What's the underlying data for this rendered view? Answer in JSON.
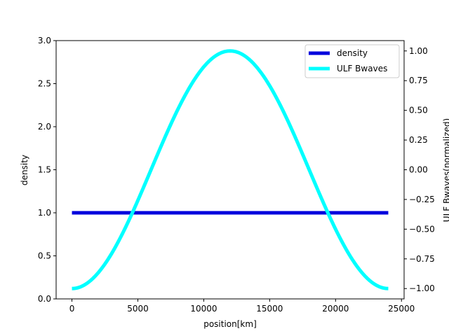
{
  "chart_data": {
    "type": "line",
    "xlabel": "position[km]",
    "ylabel_left": "density",
    "ylabel_right": "ULF Bwaves(normalized)",
    "xlim": [
      -1200,
      25200
    ],
    "ylim_left": [
      0.0,
      3.0
    ],
    "ylim_right": [
      -1.087,
      1.087
    ],
    "x_ticks": [
      0,
      5000,
      10000,
      15000,
      20000,
      25000
    ],
    "x_tick_labels": [
      "0",
      "5000",
      "10000",
      "15000",
      "20000",
      "25000"
    ],
    "y_left_ticks": [
      0.0,
      0.5,
      1.0,
      1.5,
      2.0,
      2.5,
      3.0
    ],
    "y_left_tick_labels": [
      "0.0",
      "0.5",
      "1.0",
      "1.5",
      "2.0",
      "2.5",
      "3.0"
    ],
    "y_right_ticks": [
      -1.0,
      -0.75,
      -0.5,
      -0.25,
      0.0,
      0.25,
      0.5,
      0.75,
      1.0
    ],
    "y_right_tick_labels": [
      "−1.00",
      "−0.75",
      "−0.50",
      "−0.25",
      "0.00",
      "0.25",
      "0.50",
      "0.75",
      "1.00"
    ],
    "grid": false,
    "legend_position": "top-right",
    "series": [
      {
        "name": "density",
        "axis": "left",
        "color": "#0000dd",
        "x": [
          0,
          24000
        ],
        "y": [
          1.0,
          1.0
        ]
      },
      {
        "name": "ULF Bwaves",
        "axis": "right",
        "color": "#00ffff",
        "x": [
          0,
          1000,
          2000,
          3000,
          4000,
          5000,
          6000,
          7000,
          8000,
          9000,
          10000,
          11000,
          12000,
          13000,
          14000,
          15000,
          16000,
          17000,
          18000,
          19000,
          20000,
          21000,
          22000,
          23000,
          24000
        ],
        "y": [
          -1.0,
          -0.966,
          -0.866,
          -0.707,
          -0.5,
          -0.259,
          0.0,
          0.259,
          0.5,
          0.707,
          0.866,
          0.966,
          1.0,
          0.966,
          0.866,
          0.707,
          0.5,
          0.259,
          0.0,
          -0.259,
          -0.5,
          -0.707,
          -0.866,
          -0.966,
          -1.0
        ]
      }
    ]
  }
}
